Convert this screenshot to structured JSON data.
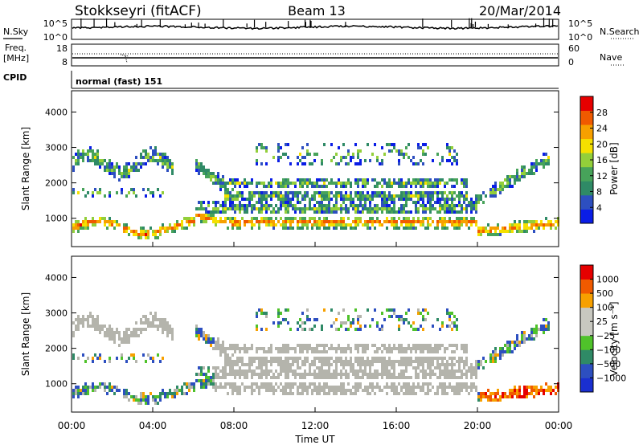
{
  "header": {
    "station": "Stokkseyri (fitACF)",
    "beam": "Beam 13",
    "date": "20/Mar/2014"
  },
  "left_labels": {
    "nsky": "N.Sky",
    "freq_line1": "Freq.",
    "freq_line2": "[MHz]",
    "cpid": "CPID"
  },
  "right_labels": {
    "nsearch": "N.Search",
    "nave": "Nave"
  },
  "cpid_value": "normal (fast) 151",
  "colors": {
    "power_scale": [
      "#0a1de6",
      "#2d4fc0",
      "#2f8a66",
      "#47a35a",
      "#93cf3a",
      "#f5e000",
      "#f7a000",
      "#f05a00",
      "#e60000"
    ],
    "velocity_scale": [
      "#e60000",
      "#f05a00",
      "#f7a000",
      "#c8c8c0",
      "#c8c8c0",
      "#4fc22a",
      "#2f8a66",
      "#2d4fc0",
      "#1a2fd0"
    ],
    "ground_scatter": "#b4b4ac"
  },
  "chart_data": [
    {
      "type": "line",
      "panel": "noise",
      "left_ticks": [
        "10^5",
        "10^0"
      ],
      "right_ticks": [
        "10^5",
        "10^0"
      ]
    },
    {
      "type": "line",
      "panel": "frequency",
      "left_ticks": [
        "18",
        "8"
      ],
      "right_ticks": [
        "60",
        "0"
      ]
    },
    {
      "type": "heatmap",
      "panel": "power",
      "ylabel": "Slant Range [km]",
      "y_ticks": [
        "4000",
        "3000",
        "2000",
        "1000"
      ],
      "y_tick_values": [
        4000,
        3000,
        2000,
        1000
      ],
      "ylim": [
        200,
        4600
      ],
      "xlim": [
        0,
        24
      ],
      "colorbar_label": "Power [dB]",
      "colorbar_ticks": [
        "28",
        "24",
        "20",
        "16",
        "12",
        "8",
        "4"
      ],
      "colorbar_values": [
        28,
        24,
        20,
        16,
        12,
        8,
        4
      ],
      "colorbar_range": [
        0,
        32
      ]
    },
    {
      "type": "heatmap",
      "panel": "velocity",
      "ylabel": "Slant Range [km]",
      "y_ticks": [
        "4000",
        "3000",
        "2000",
        "1000"
      ],
      "y_tick_values": [
        4000,
        3000,
        2000,
        1000
      ],
      "ylim": [
        200,
        4600
      ],
      "xlim": [
        0,
        24
      ],
      "xlabel": "Time UT",
      "x_ticks": [
        "00:00",
        "04:00",
        "08:00",
        "12:00",
        "16:00",
        "20:00",
        "00:00"
      ],
      "x_tick_values": [
        0,
        4,
        8,
        12,
        16,
        20,
        24
      ],
      "colorbar_label": "Velocity [m s⁻¹]",
      "colorbar_ticks": [
        "1000",
        "500",
        "100",
        "25",
        "−25",
        "−100",
        "−500",
        "−1000"
      ]
    }
  ]
}
